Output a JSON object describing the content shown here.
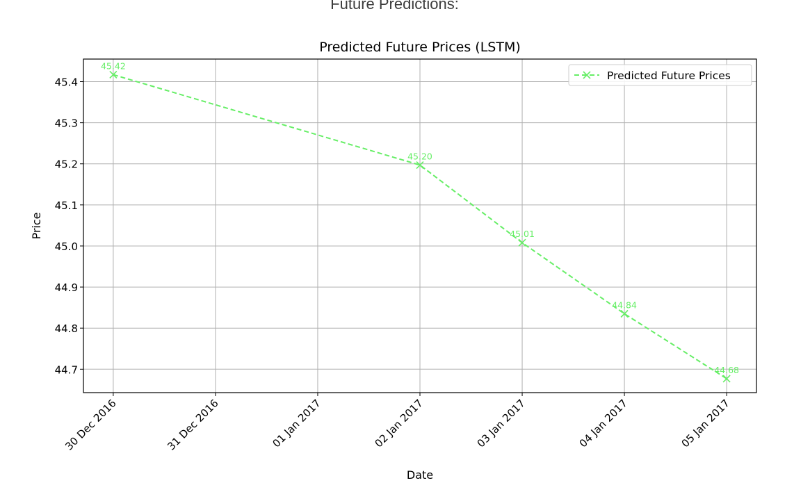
{
  "page": {
    "heading": "Future Predictions:"
  },
  "chart_data": {
    "type": "line",
    "title": "Predicted Future Prices (LSTM)",
    "xlabel": "Date",
    "ylabel": "Price",
    "x": [
      "2016-12-30",
      "2017-01-02",
      "2017-01-03",
      "2017-01-04",
      "2017-01-05"
    ],
    "xtick_labels": [
      "30 Dec 2016",
      "31 Dec 2016",
      "01 Jan 2017",
      "02 Jan 2017",
      "03 Jan 2017",
      "04 Jan 2017",
      "05 Jan 2017"
    ],
    "ytick_labels": [
      "44.7",
      "44.8",
      "44.9",
      "45.0",
      "45.1",
      "45.2",
      "45.3",
      "45.4"
    ],
    "yticks": [
      44.7,
      44.8,
      44.9,
      45.0,
      45.1,
      45.2,
      45.3,
      45.4
    ],
    "xlim": [
      "2016-12-29T17:00",
      "2017-01-05T07:00"
    ],
    "ylim": [
      44.643,
      45.455
    ],
    "grid": true,
    "legend": "top-right",
    "series": [
      {
        "name": "Predicted Future Prices",
        "color": "#66ee66",
        "line_style": "dashed",
        "marker": "x",
        "values": [
          45.417,
          45.197,
          45.008,
          44.835,
          44.677
        ],
        "value_labels": [
          "45.42",
          "45.20",
          "45.01",
          "44.84",
          "44.68"
        ]
      }
    ]
  }
}
